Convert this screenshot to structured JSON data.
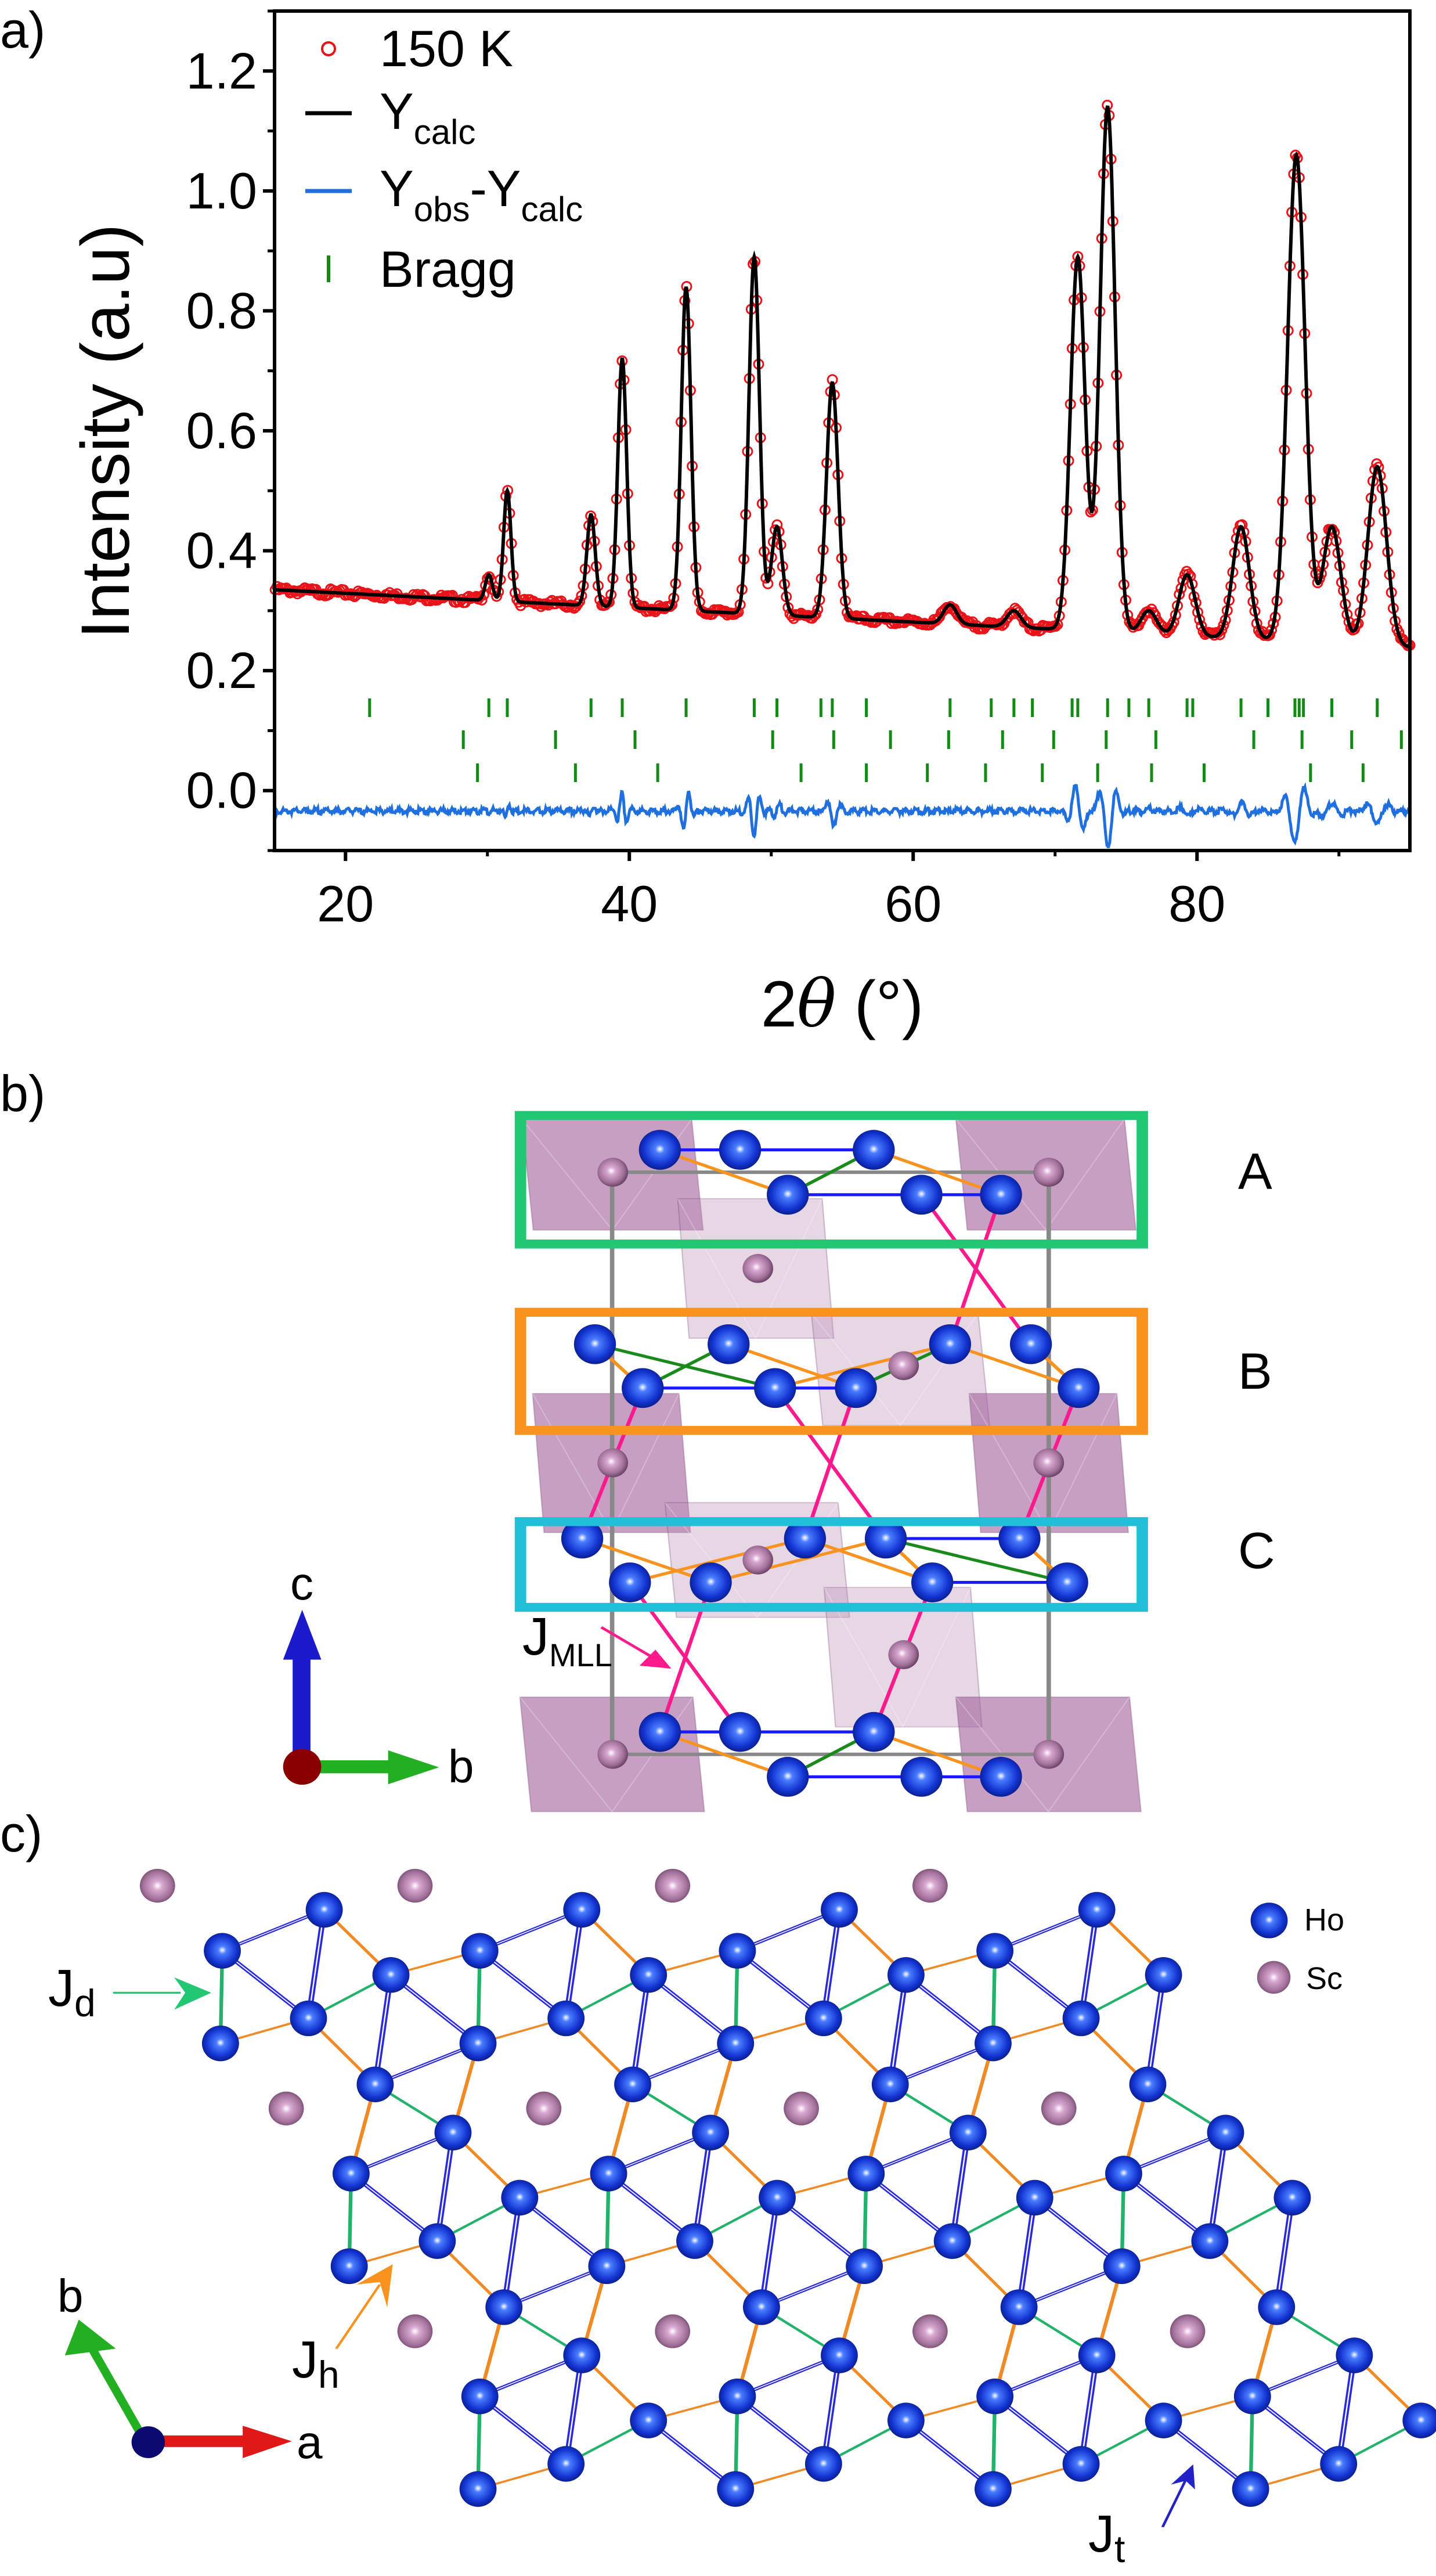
{
  "panel_labels": {
    "a": "a)",
    "b": "b)",
    "c": "c)"
  },
  "chart_data": {
    "type": "line",
    "xlabel": {
      "main": "2",
      "theta": "θ",
      "unit": " (°)"
    },
    "ylabel": "Intensity (a.u)",
    "xlim": [
      15,
      95
    ],
    "ylim": [
      -0.1,
      1.3
    ],
    "xticks": [
      "20",
      "40",
      "60",
      "80"
    ],
    "xtick_values": [
      20,
      40,
      60,
      80
    ],
    "yticks": [
      "0.0",
      "0.2",
      "0.4",
      "0.6",
      "0.8",
      "1.0",
      "1.2"
    ],
    "ytick_values": [
      0.0,
      0.2,
      0.4,
      0.6,
      0.8,
      1.0,
      1.2
    ],
    "grid": false,
    "legend_placement": "top-left",
    "legend": {
      "obs": "150 K",
      "calc": {
        "main": "Y",
        "sub": "calc"
      },
      "diff": {
        "main1": "Y",
        "sub1": "obs",
        "main2": "-Y",
        "sub2": "calc"
      },
      "bragg": "Bragg"
    },
    "colors": {
      "obs": "#e8141a",
      "calc": "#000000",
      "diff": "#1f6fde",
      "bragg": "#138a13"
    },
    "background": [
      [
        15,
        0.335
      ],
      [
        95,
        0.239
      ]
    ],
    "peaks": [
      {
        "x": 30.1,
        "y": 0.36
      },
      {
        "x": 31.4,
        "y": 0.5
      },
      {
        "x": 37.3,
        "y": 0.46
      },
      {
        "x": 39.5,
        "y": 0.72
      },
      {
        "x": 44.0,
        "y": 0.84
      },
      {
        "x": 48.8,
        "y": 0.89
      },
      {
        "x": 50.4,
        "y": 0.44
      },
      {
        "x": 54.3,
        "y": 0.68
      },
      {
        "x": 62.6,
        "y": 0.31
      },
      {
        "x": 67.1,
        "y": 0.3
      },
      {
        "x": 71.6,
        "y": 0.89
      },
      {
        "x": 73.7,
        "y": 1.14
      },
      {
        "x": 76.6,
        "y": 0.3
      },
      {
        "x": 79.3,
        "y": 0.36
      },
      {
        "x": 83.1,
        "y": 0.44
      },
      {
        "x": 87.0,
        "y": 1.06
      },
      {
        "x": 89.5,
        "y": 0.44
      },
      {
        "x": 92.7,
        "y": 0.54
      }
    ],
    "diff_baseline": -0.034,
    "bragg_rows": [
      [
        21.7,
        30.1,
        31.4,
        37.3,
        39.5,
        44.0,
        48.8,
        50.4,
        53.5,
        54.3,
        56.7,
        62.6,
        65.5,
        67.1,
        68.4,
        71.2,
        71.6,
        73.7,
        75.2,
        76.6,
        79.3,
        79.7,
        83.1,
        85.0,
        86.9,
        87.2,
        87.5,
        89.5,
        92.7
      ],
      [
        28.3,
        34.8,
        40.4,
        50.1,
        54.4,
        58.4,
        62.5,
        66.3,
        69.9,
        73.6,
        77.1,
        84.0,
        87.4,
        90.9,
        94.4
      ],
      [
        29.3,
        36.2,
        42.0,
        52.1,
        56.7,
        61.0,
        65.1,
        69.1,
        73.0,
        76.8,
        80.5,
        88.0,
        91.7
      ]
    ]
  },
  "panel_b": {
    "layer_labels": [
      "A",
      "B",
      "C"
    ],
    "layer_colors": [
      "#22c673",
      "#f7931e",
      "#22bfd8"
    ],
    "coupling_label": {
      "main": "J",
      "sub": "MLL"
    },
    "axes": {
      "c": "c",
      "b": "b"
    },
    "bond_colors": {
      "intra": "#1a1aff",
      "hex": "#f7931e",
      "dimer": "#1a8a1a",
      "interlayer": "#ff1a8c"
    }
  },
  "panel_c": {
    "labels": {
      "jd": {
        "main": "J",
        "sub": "d",
        "color": "#22c673"
      },
      "jh": {
        "main": "J",
        "sub": "h",
        "color": "#f7931e"
      },
      "jt": {
        "main": "J",
        "sub": "t",
        "color": "#2222c8"
      }
    },
    "legend": [
      {
        "label": "Ho",
        "color": "#1a3fd0"
      },
      {
        "label": "Sc",
        "color": "#a0709a"
      }
    ],
    "axes": {
      "a": "a",
      "b": "b"
    }
  }
}
